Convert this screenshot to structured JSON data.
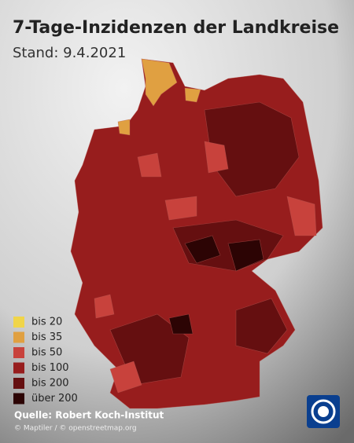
{
  "header": {
    "title": "7-Tage-Inzidenzen der Landkreise",
    "subtitle": "Stand: 9.4.2021"
  },
  "legend": [
    {
      "label": "bis 20",
      "color": "#f0d54a"
    },
    {
      "label": "bis 35",
      "color": "#e0a041"
    },
    {
      "label": "bis 50",
      "color": "#c8423c"
    },
    {
      "label": "bis 100",
      "color": "#971d1d"
    },
    {
      "label": "bis 200",
      "color": "#650f10"
    },
    {
      "label": "über 200",
      "color": "#2c0404"
    }
  ],
  "source": "Quelle: Robert Koch-Institut",
  "credit": "© Maptiler / © openstreetmap.org"
}
